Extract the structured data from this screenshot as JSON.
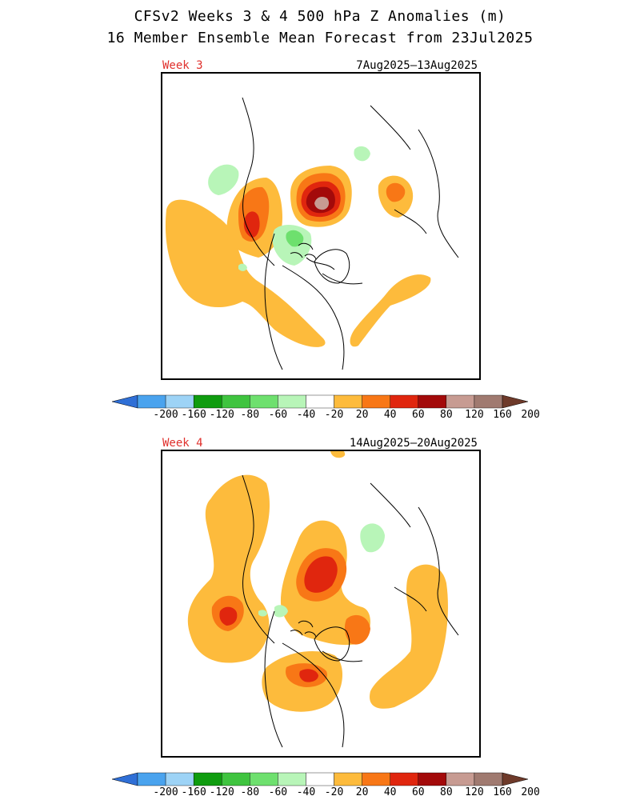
{
  "header": {
    "title_line1": "CFSv2 Weeks 3 & 4 500 hPa Z Anomalies (m)",
    "title_line2": "16 Member Ensemble Mean Forecast from 23Jul2025"
  },
  "panels": [
    {
      "label": "Week 3",
      "dates": "7Aug2025–13Aug2025"
    },
    {
      "label": "Week 4",
      "dates": "14Aug2025–20Aug2025"
    }
  ],
  "colorbar": {
    "labels": [
      "-200",
      "-160",
      "-120",
      "-80",
      "-60",
      "-40",
      "-20",
      "20",
      "40",
      "60",
      "80",
      "120",
      "160",
      "200"
    ],
    "colors": [
      "#2f6fd6",
      "#4aa3ee",
      "#9dd3f6",
      "#0f9c0f",
      "#3fc43f",
      "#6ee06e",
      "#b8f5b8",
      "#ffffff",
      "#fdbb3c",
      "#f87716",
      "#e0260e",
      "#a30a0a",
      "#c79b92",
      "#a07a70",
      "#6e3a2a"
    ]
  },
  "map_colors": {
    "pos20": "#fdbb3c",
    "pos40": "#f87716",
    "pos60": "#e0260e",
    "pos80": "#a30a0a",
    "pos120": "#c79b92",
    "neg20": "#b8f5b8",
    "neg40": "#6ee06e"
  }
}
